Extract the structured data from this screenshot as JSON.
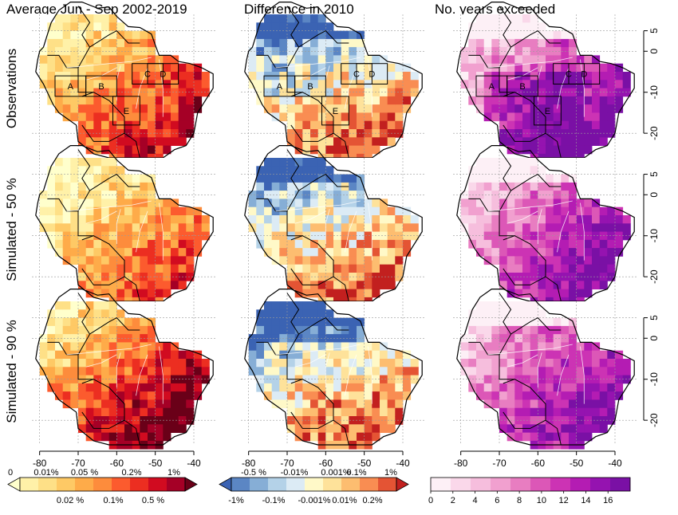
{
  "chart_data": {
    "type": "heatmap",
    "columns": [
      {
        "title": "Average Jun - Sep 2002-2019",
        "palette": "sequential-ylord"
      },
      {
        "title": "Difference in 2010",
        "palette": "diverging-bluered"
      },
      {
        "title": "No. years exceeded",
        "palette": "sequential-purple"
      }
    ],
    "rows": [
      {
        "label": "Observations"
      },
      {
        "label": "Simulated - 50 %"
      },
      {
        "label": "Simulated - 90 %"
      }
    ],
    "x_axis": {
      "ticks": [
        -80,
        -70,
        -60,
        -50,
        -40
      ],
      "range": [
        -82,
        -34
      ]
    },
    "y_axis": {
      "ticks": [
        5,
        0,
        -10,
        -20
      ],
      "tick_labels": [
        "5",
        "0",
        "-10",
        "-20"
      ],
      "range": [
        -26,
        9
      ]
    },
    "regions": [
      {
        "label": "A",
        "lon": [
          -76,
          -68
        ],
        "lat": [
          -11,
          -6
        ]
      },
      {
        "label": "B",
        "lon": [
          -68,
          -60
        ],
        "lat": [
          -11,
          -6
        ]
      },
      {
        "label": "C",
        "lon": [
          -56,
          -48
        ],
        "lat": [
          -8,
          -3
        ]
      },
      {
        "label": "D",
        "lon": [
          -52,
          -44
        ],
        "lat": [
          -8,
          -3
        ]
      },
      {
        "label": "E",
        "lon": [
          -61,
          -54
        ],
        "lat": [
          -18,
          -11
        ]
      }
    ],
    "colorbars": [
      {
        "colors": [
          "#ffffcc",
          "#fff1a8",
          "#fee087",
          "#fec965",
          "#feab49",
          "#fd8c3c",
          "#fc5b2e",
          "#ec2e21",
          "#d10b20",
          "#a50026",
          "#6a0018"
        ],
        "top_labels": [
          "0",
          "0.01%",
          "0.05 %",
          "0.2%",
          "1%"
        ],
        "bottom_labels": [
          "0.02 %",
          "0.1%",
          "0.5 %"
        ]
      },
      {
        "colors": [
          "#3b63b3",
          "#5b86c4",
          "#86aed6",
          "#b4d2e8",
          "#dcebf5",
          "#fff9c8",
          "#fee29a",
          "#fdbd70",
          "#f98d52",
          "#e45434",
          "#c2201f"
        ],
        "top_labels": [
          "-0.5 %",
          "-0.01%",
          "0.001%",
          "0.1%",
          "1%"
        ],
        "bottom_labels": [
          "-1%",
          "-0.1%",
          "-0.001%",
          "0.01%",
          "0.2%"
        ]
      },
      {
        "colors": [
          "#fdf0f6",
          "#fad8ea",
          "#f6bedd",
          "#f1a0cf",
          "#e87dc1",
          "#dc57b7",
          "#cc33b4",
          "#b41cb3",
          "#9513b0",
          "#7a10a5"
        ],
        "bottom_labels": [
          "0",
          "2",
          "4",
          "6",
          "8",
          "10",
          "12",
          "14",
          "16"
        ],
        "range": [
          0,
          18
        ]
      }
    ]
  }
}
